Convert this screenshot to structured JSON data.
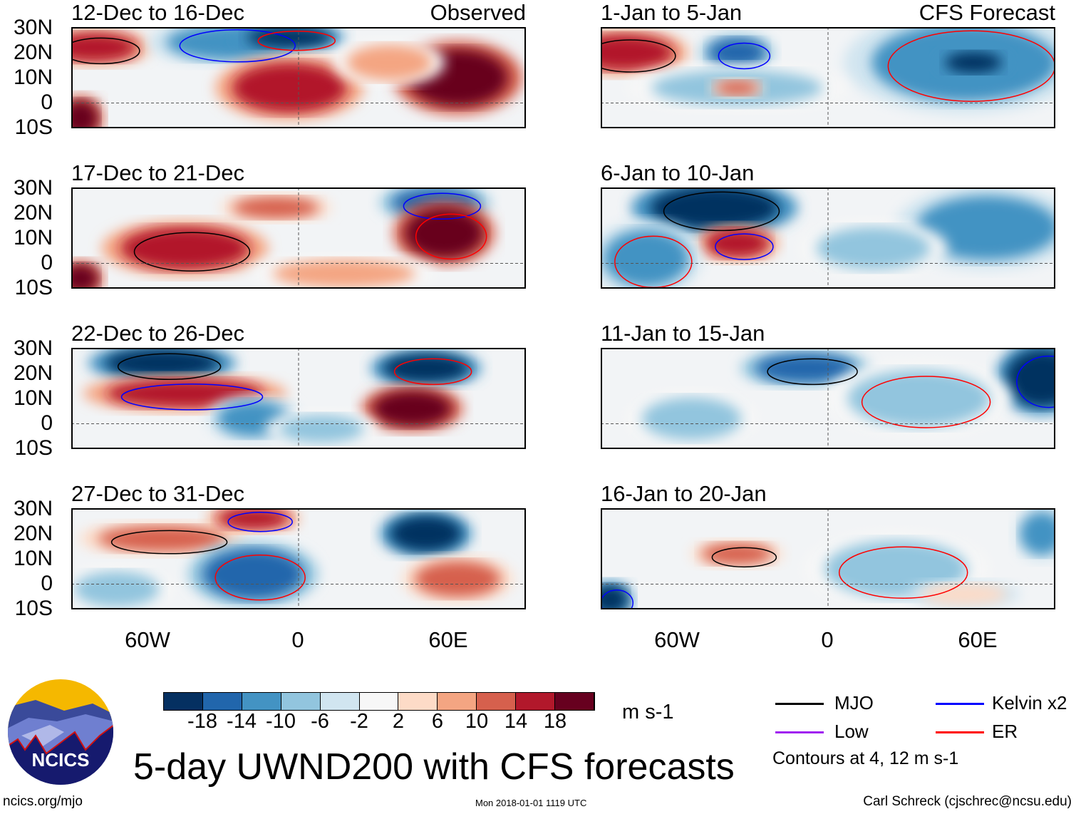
{
  "panels": {
    "left": [
      {
        "title": "12-Dec to 16-Dec",
        "label": "Observed"
      },
      {
        "title": "17-Dec to 21-Dec",
        "label": ""
      },
      {
        "title": "22-Dec to 26-Dec",
        "label": ""
      },
      {
        "title": "27-Dec to 31-Dec",
        "label": ""
      }
    ],
    "right": [
      {
        "title": "1-Jan to 5-Jan",
        "label": "CFS Forecast"
      },
      {
        "title": "6-Jan to 10-Jan",
        "label": ""
      },
      {
        "title": "11-Jan to 15-Jan",
        "label": ""
      },
      {
        "title": "16-Jan to 20-Jan",
        "label": ""
      }
    ]
  },
  "axes": {
    "lat_labels": [
      "30N",
      "20N",
      "10N",
      "0",
      "10S"
    ],
    "lon_labels": [
      "60W",
      "0",
      "60E"
    ],
    "lon_range": [
      -90,
      90
    ],
    "lat_range": [
      -10,
      30
    ]
  },
  "colorbar": {
    "colors": [
      "#053061",
      "#2166ac",
      "#4393c3",
      "#92c5de",
      "#d1e5f0",
      "#f7f7f7",
      "#fddbc7",
      "#f4a582",
      "#d6604d",
      "#b2182b",
      "#67001f"
    ],
    "tick_labels": [
      "-18",
      "-14",
      "-10",
      "-6",
      "-2",
      "2",
      "6",
      "10",
      "14",
      "18"
    ],
    "units": "m s-1"
  },
  "legend": {
    "items": [
      {
        "label": "MJO",
        "color": "#000000"
      },
      {
        "label": "Kelvin x2",
        "color": "#0000ff"
      },
      {
        "label": "Low",
        "color": "#a020f0"
      },
      {
        "label": "ER",
        "color": "#ff0000"
      }
    ],
    "note": "Contours at 4, 12 m s-1"
  },
  "logo": {
    "text": "NCICS"
  },
  "title": "5-day UWND200 with CFS forecasts",
  "footer": {
    "left": "ncics.org/mjo",
    "center": "Mon 2018-01-01 1119 UTC",
    "right": "Carl Schreck (cjschrec@ncsu.edu)"
  }
}
